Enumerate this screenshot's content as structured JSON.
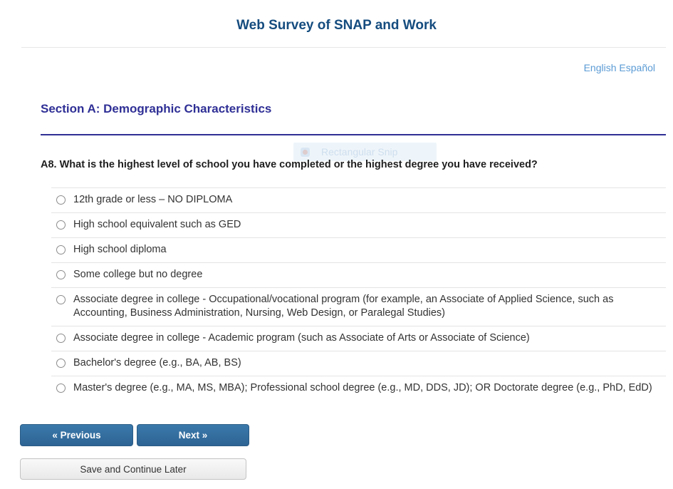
{
  "header": {
    "title": "Web Survey of SNAP and Work"
  },
  "language": {
    "links": [
      {
        "label": "English"
      },
      {
        "label": "Español"
      }
    ]
  },
  "section": {
    "title": "Section A: Demographic Characteristics"
  },
  "snip_overlay": {
    "label": "Rectangular Snip"
  },
  "question": {
    "id": "A8",
    "text": "A8. What is the highest level of school you have completed or the highest degree you have received?"
  },
  "options": [
    "12th grade or less – NO DIPLOMA",
    "High school equivalent such as GED",
    "High school diploma",
    "Some college but no degree",
    "Associate degree in college - Occupational/vocational program (for example, an Associate of Applied Science, such as Accounting, Business Administration, Nursing, Web Design, or Paralegal Studies)",
    "Associate degree in college - Academic program (such as Associate of Arts or Associate of Science)",
    "Bachelor's degree (e.g., BA, AB, BS)",
    "Master's degree (e.g., MA, MS, MBA); Professional school degree (e.g., MD, DDS, JD); OR Doctorate degree (e.g., PhD, EdD)"
  ],
  "buttons": {
    "previous": "« Previous",
    "next": "Next »",
    "save": "Save and Continue Later"
  },
  "colors": {
    "title_blue": "#154c7f",
    "section_indigo": "#2f2f96",
    "link_blue": "#5b9bd5",
    "button_blue": "#2d6494",
    "divider_gray": "#e4e4e4"
  }
}
